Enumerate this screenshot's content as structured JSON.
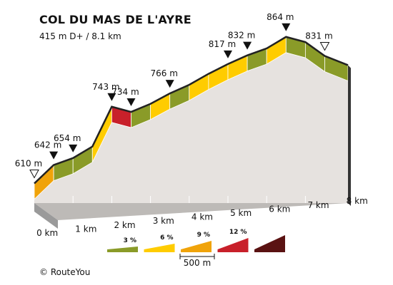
{
  "header": {
    "title": "COL DU MAS DE L'AYRE",
    "subtitle": "415 m D+ / 8.1 km"
  },
  "footer": {
    "copyright": "© RouteYou"
  },
  "chart_data": {
    "type": "area",
    "title": "COL DU MAS DE L'AYRE",
    "subtitle": "415 m D+ / 8.1 km",
    "x_unit": "km",
    "y_unit": "m",
    "km_ticks": [
      0,
      1,
      2,
      3,
      4,
      5,
      6,
      7,
      8
    ],
    "km_tick_labels": [
      "0 km",
      "1 km",
      "2 km",
      "3 km",
      "4 km",
      "5 km",
      "6 km",
      "7 km",
      "8 km"
    ],
    "xlim": [
      0,
      8.1
    ],
    "ylim": [
      560,
      880
    ],
    "profile_points": [
      {
        "x": 0,
        "y": 610
      },
      {
        "x": 0.5,
        "y": 642
      },
      {
        "x": 1.0,
        "y": 654
      },
      {
        "x": 1.5,
        "y": 674
      },
      {
        "x": 2.0,
        "y": 743
      },
      {
        "x": 2.5,
        "y": 734
      },
      {
        "x": 3.0,
        "y": 748
      },
      {
        "x": 3.5,
        "y": 766
      },
      {
        "x": 4.0,
        "y": 781
      },
      {
        "x": 4.5,
        "y": 800
      },
      {
        "x": 5.0,
        "y": 817
      },
      {
        "x": 5.5,
        "y": 832
      },
      {
        "x": 6.0,
        "y": 844
      },
      {
        "x": 6.5,
        "y": 864
      },
      {
        "x": 7.0,
        "y": 855
      },
      {
        "x": 7.5,
        "y": 831
      },
      {
        "x": 8.1,
        "y": 815
      }
    ],
    "segment_grade_classes": [
      9,
      3,
      3,
      6,
      12,
      3,
      6,
      3,
      6,
      6,
      6,
      3,
      6,
      3,
      3,
      3
    ],
    "elevation_labels": [
      {
        "x": 0,
        "text": "610 m",
        "marker": "start"
      },
      {
        "x": 0.5,
        "text": "642 m",
        "marker": "down"
      },
      {
        "x": 1.0,
        "text": "654 m",
        "marker": "down"
      },
      {
        "x": 2.0,
        "text": "743 m",
        "marker": "down"
      },
      {
        "x": 2.5,
        "text": "734 m",
        "marker": "down"
      },
      {
        "x": 3.5,
        "text": "766 m",
        "marker": "down"
      },
      {
        "x": 5.0,
        "text": "817 m",
        "marker": "down"
      },
      {
        "x": 5.5,
        "text": "832 m",
        "marker": "down"
      },
      {
        "x": 6.5,
        "text": "864 m",
        "marker": "down"
      },
      {
        "x": 7.5,
        "text": "831 m",
        "marker": "end"
      }
    ],
    "legend": {
      "grades": [
        {
          "label": "3 %",
          "value": 3,
          "color": "#8a9b28"
        },
        {
          "label": "6 %",
          "value": 6,
          "color": "#ffcc00"
        },
        {
          "label": "9 %",
          "value": 9,
          "color": "#f0a30a"
        },
        {
          "label": "12 %",
          "value": 12,
          "color": "#c8202a"
        },
        {
          "label": "",
          "value": 15,
          "color": "#5a1212"
        }
      ],
      "distance_label": "500 m"
    },
    "colors": {
      "face": "#e6e2df",
      "side": "#9a9a9a",
      "outline": "#222222"
    }
  }
}
